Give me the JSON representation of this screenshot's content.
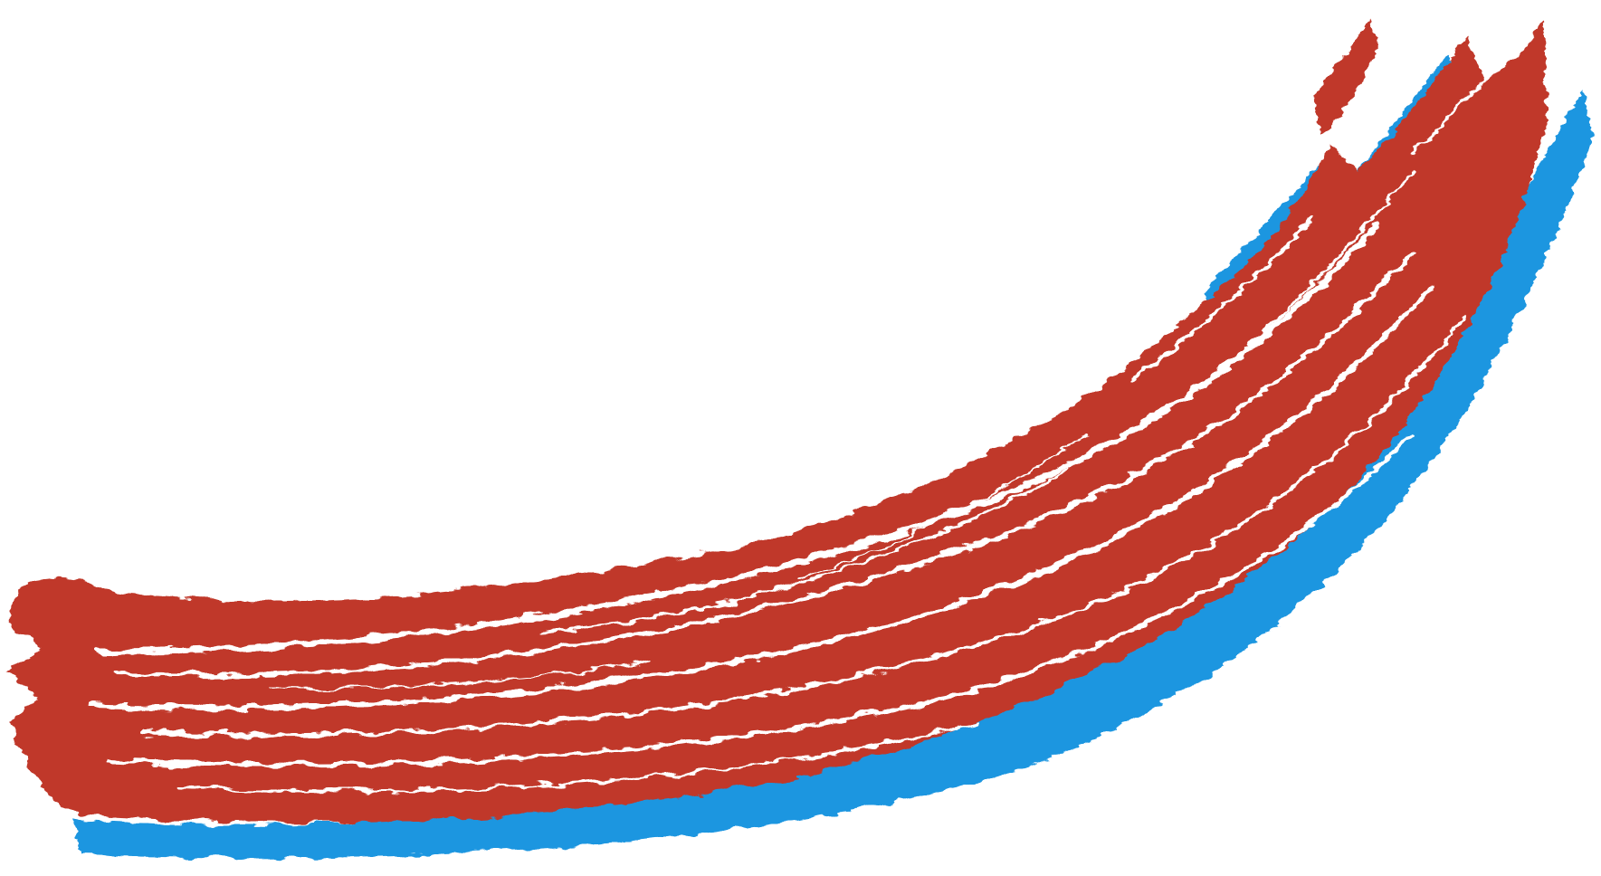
{
  "artwork": {
    "subject": "brush-stroke",
    "colors": {
      "red": "#c0392b",
      "blue": "#1e96e0",
      "background": "#ffffff"
    },
    "layers": [
      "blue-stroke",
      "red-stroke",
      "white-streaks"
    ]
  }
}
